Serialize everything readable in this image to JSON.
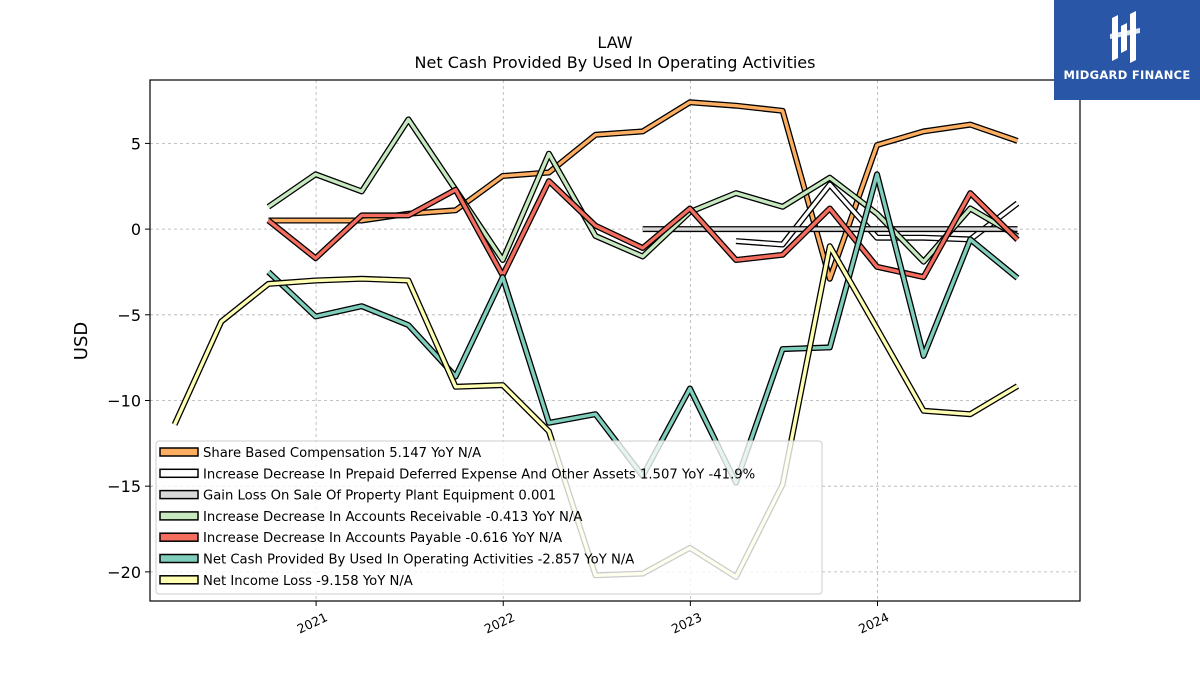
{
  "chart_data": {
    "type": "line",
    "title": "LAW",
    "subtitle": "Net Cash Provided By Used In Operating Activities",
    "ylabel": "USD",
    "xlabel": "",
    "ylim": [
      -21.7,
      8.7
    ],
    "xlim": [
      "2020-02-12",
      "2025-01-30"
    ],
    "yticks": [
      5,
      0,
      -5,
      -10,
      -15,
      -20
    ],
    "ytick_labels": [
      "5",
      "0",
      "−5",
      "−10",
      "−15",
      "−20"
    ],
    "xticks": [
      "2021-01-01",
      "2022-01-01",
      "2023-01-01",
      "2024-01-01"
    ],
    "xtick_labels": [
      "2021",
      "2022",
      "2023",
      "2024"
    ],
    "grid": true,
    "legend_position": "lower-left",
    "series": [
      {
        "name": "Share Based Compensation",
        "legend": "Share Based Compensation  5.147 YoY N/A",
        "color": "#fdae61",
        "x": [
          "2020-09-30",
          "2020-12-31",
          "2021-03-31",
          "2021-06-30",
          "2021-09-30",
          "2021-12-31",
          "2022-03-31",
          "2022-06-30",
          "2022-09-30",
          "2022-12-31",
          "2023-03-31",
          "2023-06-30",
          "2023-09-30",
          "2023-12-31",
          "2024-03-31",
          "2024-06-30",
          "2024-09-30"
        ],
        "y": [
          0.5,
          0.5,
          0.5,
          0.9,
          1.1,
          3.1,
          3.3,
          5.5,
          5.7,
          7.4,
          7.2,
          6.9,
          -2.9,
          4.9,
          5.7,
          6.1,
          5.147
        ]
      },
      {
        "name": "Increase Decrease In Prepaid Deferred Expense And Other Assets",
        "legend": "Increase Decrease In Prepaid Deferred Expense And Other Assets  1.507 YoY -41.9%",
        "color": "#ffffff",
        "x": [
          "2023-03-31",
          "2023-06-30",
          "2023-09-30",
          "2023-12-31",
          "2024-03-31",
          "2024-06-30",
          "2024-09-30"
        ],
        "y": [
          -0.7,
          -0.9,
          2.6,
          -0.5,
          -0.5,
          -0.6,
          1.507
        ]
      },
      {
        "name": "Gain Loss On Sale Of Property Plant Equipment",
        "legend": "Gain Loss On Sale Of Property Plant Equipment  0.001",
        "color": "#d9d9d9",
        "x": [
          "2022-09-30",
          "2022-12-31",
          "2023-03-31",
          "2023-06-30",
          "2023-09-30",
          "2023-12-31",
          "2024-03-31",
          "2024-06-30",
          "2024-09-30"
        ],
        "y": [
          0.001,
          0.001,
          0.001,
          0.001,
          0.001,
          0.001,
          0.001,
          0.001,
          0.001
        ]
      },
      {
        "name": "Increase Decrease In Accounts Receivable",
        "legend": "Increase Decrease In Accounts Receivable  -0.413 YoY N/A",
        "color": "#c7e9c0",
        "x": [
          "2020-09-30",
          "2020-12-31",
          "2021-03-31",
          "2021-06-30",
          "2021-09-30",
          "2021-12-31",
          "2022-03-31",
          "2022-06-30",
          "2022-09-30",
          "2022-12-31",
          "2023-03-31",
          "2023-06-30",
          "2023-09-30",
          "2023-12-31",
          "2024-03-31",
          "2024-06-30",
          "2024-09-30"
        ],
        "y": [
          1.3,
          3.2,
          2.2,
          6.4,
          2.3,
          -1.8,
          4.4,
          -0.4,
          -1.6,
          1.0,
          2.1,
          1.3,
          3.0,
          0.9,
          -1.9,
          1.2,
          -0.413
        ]
      },
      {
        "name": "Increase Decrease In Accounts Payable",
        "legend": "Increase Decrease In Accounts Payable  -0.616 YoY N/A",
        "color": "#f46d5e",
        "x": [
          "2020-09-30",
          "2020-12-31",
          "2021-03-31",
          "2021-06-30",
          "2021-09-30",
          "2021-12-31",
          "2022-03-31",
          "2022-06-30",
          "2022-09-30",
          "2022-12-31",
          "2023-03-31",
          "2023-06-30",
          "2023-09-30",
          "2023-12-31",
          "2024-03-31",
          "2024-06-30",
          "2024-09-30"
        ],
        "y": [
          0.5,
          -1.7,
          0.8,
          0.8,
          2.3,
          -2.7,
          2.8,
          0.2,
          -1.1,
          1.2,
          -1.8,
          -1.5,
          1.2,
          -2.2,
          -2.8,
          2.1,
          -0.616
        ]
      },
      {
        "name": "Net Cash Provided By Used In Operating Activities",
        "legend": "Net Cash Provided By Used In Operating Activities  -2.857 YoY N/A",
        "color": "#7fcdbb",
        "x": [
          "2020-09-30",
          "2020-12-31",
          "2021-03-31",
          "2021-06-30",
          "2021-09-30",
          "2021-12-31",
          "2022-03-31",
          "2022-06-30",
          "2022-09-30",
          "2022-12-31",
          "2023-03-31",
          "2023-06-30",
          "2023-09-30",
          "2023-12-31",
          "2024-03-31",
          "2024-06-30",
          "2024-09-30"
        ],
        "y": [
          -2.5,
          -5.1,
          -4.5,
          -5.6,
          -8.6,
          -2.8,
          -11.3,
          -10.8,
          -14.4,
          -9.3,
          -14.8,
          -7.0,
          -6.9,
          3.2,
          -7.4,
          -0.6,
          -2.857
        ]
      },
      {
        "name": "Net Income Loss",
        "legend": "Net Income Loss  -9.158 YoY N/A",
        "color": "#ffffb3",
        "x": [
          "2020-03-31",
          "2020-06-30",
          "2020-09-30",
          "2020-12-31",
          "2021-03-31",
          "2021-06-30",
          "2021-09-30",
          "2021-12-31",
          "2022-03-31",
          "2022-06-30",
          "2022-09-30",
          "2022-12-31",
          "2023-03-31",
          "2023-06-30",
          "2023-09-30",
          "2023-12-31",
          "2024-03-31",
          "2024-06-30",
          "2024-09-30"
        ],
        "y": [
          -11.4,
          -5.4,
          -3.2,
          -3.0,
          -2.9,
          -3.0,
          -9.2,
          -9.1,
          -11.8,
          -20.2,
          -20.1,
          -18.6,
          -20.3,
          -14.9,
          -1.0,
          -5.8,
          -10.6,
          -10.8,
          -9.158
        ]
      }
    ]
  },
  "logo": {
    "text": "MIDGARD FINANCE"
  }
}
